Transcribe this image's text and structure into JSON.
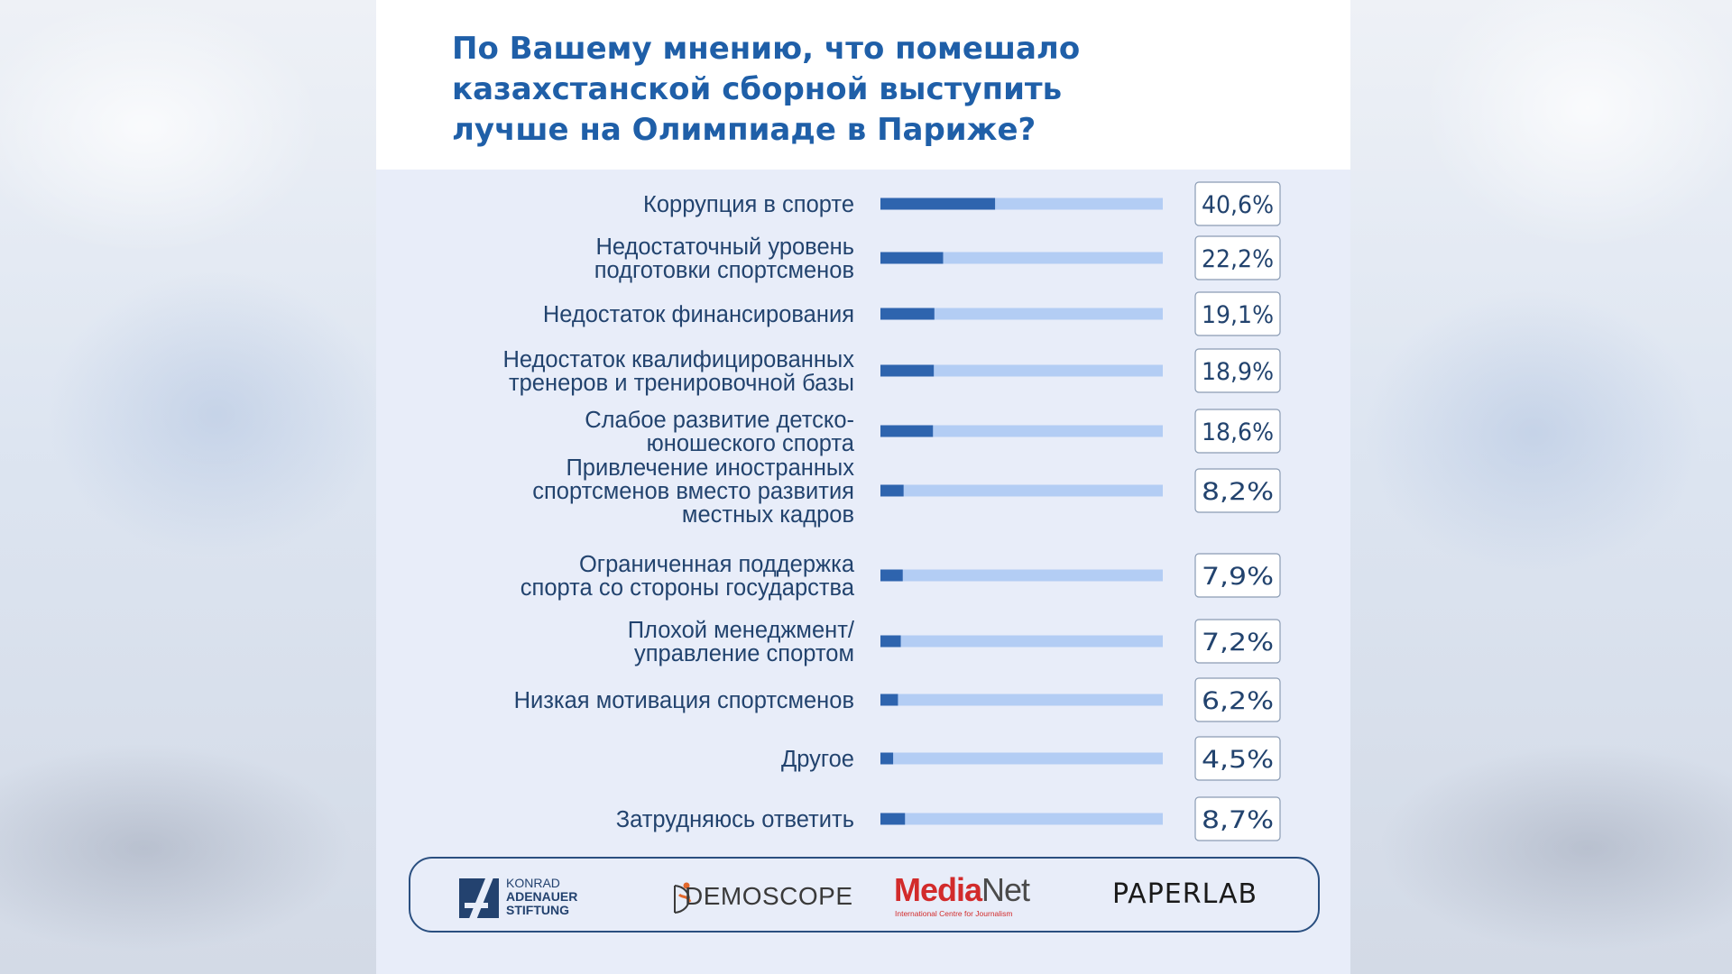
{
  "title_lines": [
    "По Вашему мнению, что помешало",
    "казахстанской сборной выступить",
    "лучше на Олимпиаде в Париже?"
  ],
  "chart_data": {
    "type": "bar",
    "orientation": "horizontal",
    "title": "По Вашему мнению, что помешало казахстанской сборной выступить лучше на Олимпиаде в Париже?",
    "unit": "%",
    "xlim": [
      0,
      100
    ],
    "categories": [
      [
        "Коррупция в спорте"
      ],
      [
        "Недостаточный уровень",
        "подготовки спортсменов"
      ],
      [
        "Недостаток финансирования"
      ],
      [
        "Недостаток квалифицированных",
        "тренеров и тренировочной базы"
      ],
      [
        "Слабое развитие детско-",
        "юношеского спорта"
      ],
      [
        "Привлечение иностранных",
        "спортсменов вместо развития",
        "местных кадров"
      ],
      [
        "Ограниченная поддержка",
        "спорта со стороны государства"
      ],
      [
        "Плохой менеджмент/",
        "управление спортом"
      ],
      [
        "Низкая мотивация спортсменов"
      ],
      [
        "Другое"
      ],
      [
        "Затрудняюсь ответить"
      ]
    ],
    "values": [
      40.6,
      22.2,
      19.1,
      18.9,
      18.6,
      8.2,
      7.9,
      7.2,
      6.2,
      4.5,
      8.7
    ],
    "value_labels": [
      "40,6%",
      "22,2%",
      "19,1%",
      "18,9%",
      "18,6%",
      "8,2%",
      "7,9%",
      "7,2%",
      "6,2%",
      "4,5%",
      "8,7%"
    ],
    "colors": {
      "fill": "#2e64ae",
      "track": "#b3cdf4",
      "text": "#22436e",
      "box_border": "#8a9bb3"
    }
  },
  "logos": {
    "kas": {
      "line1": "KONRAD",
      "line2": "ADENAUER",
      "line3": "STIFTUNG",
      "icon": "kas-logo-mark"
    },
    "demoscope": {
      "text": "DEMOSCOPE",
      "icon": "demoscope-mark"
    },
    "medianet": {
      "media": "Media",
      "net": "Net",
      "subtitle": "International Centre for Journalism"
    },
    "paperlab": {
      "text": "PAPERLAB"
    }
  }
}
